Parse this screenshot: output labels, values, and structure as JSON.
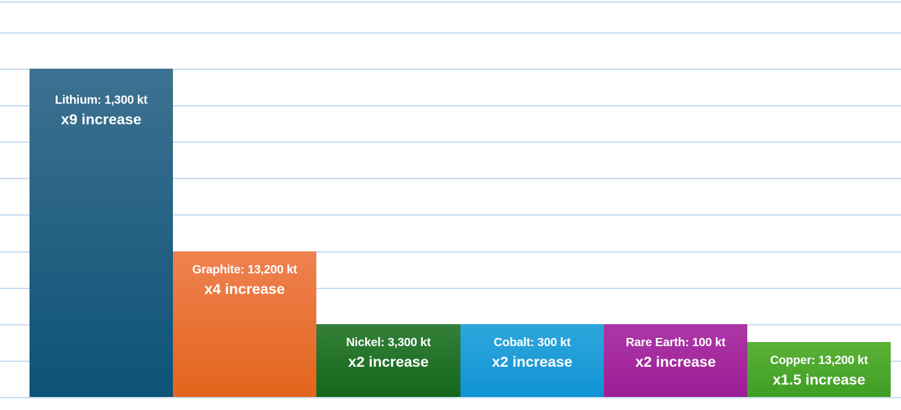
{
  "chart_data": {
    "type": "bar",
    "title": "",
    "xlabel": "",
    "ylabel": "",
    "ylim": [
      0,
      10.85
    ],
    "grid": true,
    "gridline_interval": 1,
    "gridline_color": "#c9ddf2",
    "background_color": "#ffffff",
    "label_text_color": "#ffffff",
    "categories": [
      "Lithium",
      "Graphite",
      "Nickel",
      "Cobalt",
      "Rare Earth",
      "Copper"
    ],
    "values": [
      9,
      4,
      2,
      2,
      2,
      1.5
    ],
    "bars": [
      {
        "name": "Lithium",
        "demand": "1,300 kt",
        "multiplier": 9,
        "label": "Lithium: 1,300 kt",
        "sublabel": "x9 increase",
        "color_top": "#3d7191",
        "color_bottom": "#0d5376"
      },
      {
        "name": "Graphite",
        "demand": "13,200 kt",
        "multiplier": 4,
        "label": "Graphite: 13,200 kt",
        "sublabel": "x4 increase",
        "color_top": "#ef8150",
        "color_bottom": "#e2651c"
      },
      {
        "name": "Nickel",
        "demand": "3,300 kt",
        "multiplier": 2,
        "label": "Nickel: 3,300 kt",
        "sublabel": "x2 increase",
        "color_top": "#34803a",
        "color_bottom": "#15661b"
      },
      {
        "name": "Cobalt",
        "demand": "300 kt",
        "multiplier": 2,
        "label": "Cobalt: 300 kt",
        "sublabel": "x2 increase",
        "color_top": "#2fa6dc",
        "color_bottom": "#0f93d2"
      },
      {
        "name": "Rare Earth",
        "demand": "100 kt",
        "multiplier": 2,
        "label": "Rare Earth: 100 kt",
        "sublabel": "x2 increase",
        "color_top": "#ad37a7",
        "color_bottom": "#9c1d96"
      },
      {
        "name": "Copper",
        "demand": "13,200 kt",
        "multiplier": 1.5,
        "label": "Copper: 13,200 kt",
        "sublabel": "x1.5 increase",
        "color_top": "#5bb237",
        "color_bottom": "#3f9e24"
      }
    ]
  }
}
